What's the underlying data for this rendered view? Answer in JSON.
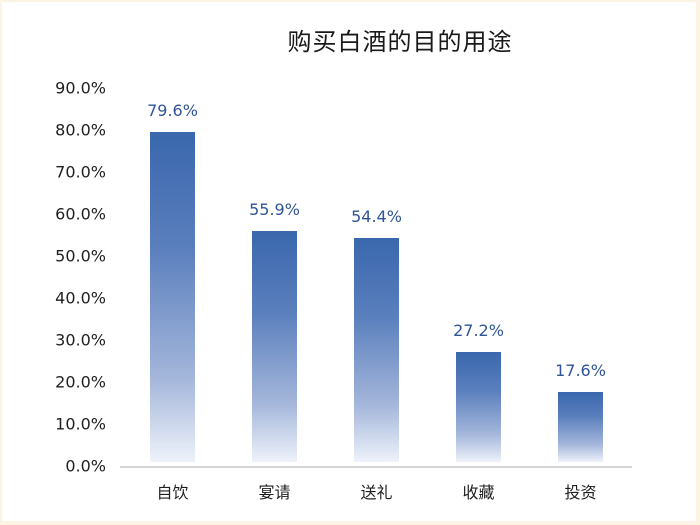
{
  "chart_data": {
    "type": "bar",
    "title": "购买白酒的目的用途",
    "xlabel": "",
    "ylabel": "",
    "categories": [
      "自饮",
      "宴请",
      "送礼",
      "收藏",
      "投资"
    ],
    "values": [
      79.6,
      55.9,
      54.4,
      27.2,
      17.6
    ],
    "value_labels": [
      "79.6%",
      "55.9%",
      "54.4%",
      "27.2%",
      "17.6%"
    ],
    "ylim": [
      0,
      90
    ],
    "yticks": [
      "0.0%",
      "10.0%",
      "20.0%",
      "30.0%",
      "40.0%",
      "50.0%",
      "60.0%",
      "70.0%",
      "80.0%",
      "90.0%"
    ],
    "grid": false,
    "legend": null,
    "colors": {
      "bar_top": "#3a67ad",
      "bar_bottom": "#eef2fa",
      "label": "#2f5597"
    }
  }
}
